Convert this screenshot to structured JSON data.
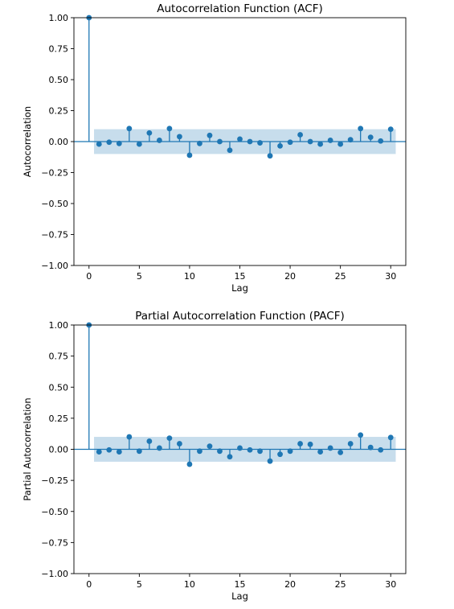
{
  "chart_data": [
    {
      "type": "stem",
      "title": "Autocorrelation Function (ACF)",
      "xlabel": "Lag",
      "ylabel": "Autocorrelation",
      "xlim": [
        -1.5,
        31.5
      ],
      "ylim": [
        -1.0,
        1.0
      ],
      "x_ticks": [
        "0",
        "5",
        "10",
        "15",
        "20",
        "25",
        "30"
      ],
      "y_ticks": [
        "−1.00",
        "−0.75",
        "−0.50",
        "−0.25",
        "0.00",
        "0.25",
        "0.50",
        "0.75",
        "1.00"
      ],
      "grid": false,
      "confidence_band": {
        "x_range": [
          0.5,
          30.5
        ],
        "lower": -0.1,
        "upper": 0.1
      },
      "x": [
        0,
        1,
        2,
        3,
        4,
        5,
        6,
        7,
        8,
        9,
        10,
        11,
        12,
        13,
        14,
        15,
        16,
        17,
        18,
        19,
        20,
        21,
        22,
        23,
        24,
        25,
        26,
        27,
        28,
        29,
        30
      ],
      "values": [
        1.0,
        -0.02,
        -0.005,
        -0.015,
        0.105,
        -0.02,
        0.07,
        0.01,
        0.105,
        0.04,
        -0.11,
        -0.015,
        0.05,
        0.0,
        -0.07,
        0.02,
        0.0,
        -0.01,
        -0.115,
        -0.035,
        -0.005,
        0.055,
        0.0,
        -0.02,
        0.01,
        -0.02,
        0.015,
        0.105,
        0.035,
        0.005,
        0.1
      ]
    },
    {
      "type": "stem",
      "title": "Partial Autocorrelation Function (PACF)",
      "xlabel": "Lag",
      "ylabel": "Partial Autocorrelation",
      "xlim": [
        -1.5,
        31.5
      ],
      "ylim": [
        -1.0,
        1.0
      ],
      "x_ticks": [
        "0",
        "5",
        "10",
        "15",
        "20",
        "25",
        "30"
      ],
      "y_ticks": [
        "−1.00",
        "−0.75",
        "−0.50",
        "−0.25",
        "0.00",
        "0.25",
        "0.50",
        "0.75",
        "1.00"
      ],
      "grid": false,
      "confidence_band": {
        "x_range": [
          0.5,
          30.5
        ],
        "lower": -0.1,
        "upper": 0.1
      },
      "x": [
        0,
        1,
        2,
        3,
        4,
        5,
        6,
        7,
        8,
        9,
        10,
        11,
        12,
        13,
        14,
        15,
        16,
        17,
        18,
        19,
        20,
        21,
        22,
        23,
        24,
        25,
        26,
        27,
        28,
        29,
        30
      ],
      "values": [
        1.0,
        -0.02,
        -0.005,
        -0.02,
        0.1,
        -0.015,
        0.065,
        0.01,
        0.09,
        0.045,
        -0.12,
        -0.015,
        0.025,
        -0.015,
        -0.06,
        0.01,
        -0.005,
        -0.015,
        -0.095,
        -0.04,
        -0.015,
        0.045,
        0.04,
        -0.02,
        0.01,
        -0.025,
        0.045,
        0.115,
        0.015,
        -0.005,
        0.095
      ]
    }
  ],
  "colors": {
    "stem": "#1f77b4",
    "band": "#1f77b4",
    "axes": "#000000"
  }
}
